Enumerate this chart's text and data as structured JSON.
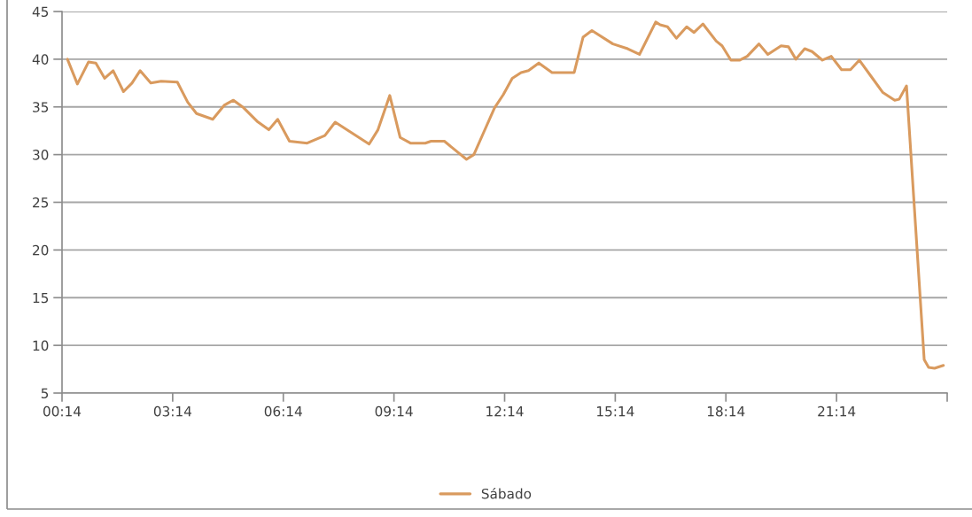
{
  "chart_data": {
    "type": "line",
    "series": [
      {
        "name": "Sábado",
        "color": "#d99a5e",
        "x": [
          0.38,
          0.65,
          0.95,
          1.15,
          1.39,
          1.62,
          1.9,
          2.13,
          2.35,
          2.64,
          2.92,
          3.36,
          3.64,
          3.88,
          4.32,
          4.64,
          4.88,
          5.16,
          5.52,
          5.84,
          6.08,
          6.4,
          6.88,
          7.36,
          7.64,
          8.56,
          8.8,
          9.12,
          9.4,
          9.68,
          10.08,
          10.24,
          10.6,
          11.2,
          11.4,
          11.64,
          11.96,
          12.2,
          12.44,
          12.68,
          12.88,
          13.16,
          13.52,
          14.12,
          14.36,
          14.6,
          15.17,
          15.57,
          15.89,
          16.33,
          16.45,
          16.65,
          16.89,
          17.17,
          17.37,
          17.61,
          17.97,
          18.13,
          18.37,
          18.61,
          18.81,
          19.13,
          19.37,
          19.73,
          19.93,
          20.13,
          20.37,
          20.57,
          20.85,
          21.09,
          21.37,
          21.61,
          21.85,
          22.17,
          22.49,
          22.81,
          22.93,
          23.13,
          23.61,
          23.73,
          23.89,
          24.13
        ],
        "values": [
          40.0,
          37.4,
          39.7,
          39.6,
          38.0,
          38.8,
          36.6,
          37.5,
          38.8,
          37.5,
          37.7,
          37.6,
          35.5,
          34.3,
          33.7,
          35.2,
          35.7,
          34.9,
          33.5,
          32.6,
          33.7,
          31.4,
          31.2,
          32.0,
          33.4,
          31.1,
          32.6,
          36.2,
          31.8,
          31.2,
          31.2,
          31.4,
          31.4,
          29.5,
          30.0,
          32.1,
          34.9,
          36.3,
          38.0,
          38.6,
          38.8,
          39.6,
          38.6,
          38.6,
          42.3,
          43.0,
          41.6,
          41.1,
          40.5,
          43.9,
          43.6,
          43.4,
          42.2,
          43.4,
          42.8,
          43.7,
          41.9,
          41.4,
          39.9,
          39.9,
          40.3,
          41.6,
          40.5,
          41.4,
          41.3,
          40.0,
          41.1,
          40.8,
          39.9,
          40.3,
          38.9,
          38.9,
          39.9,
          38.2,
          36.5,
          35.7,
          35.8,
          37.2,
          8.5,
          7.7,
          7.6,
          7.9
        ]
      }
    ],
    "xlim": [
      0.2333,
      24.2333
    ],
    "xticks": [
      {
        "value": 0.2333,
        "label": "00:14"
      },
      {
        "value": 3.2333,
        "label": "03:14"
      },
      {
        "value": 6.2333,
        "label": "06:14"
      },
      {
        "value": 9.2333,
        "label": "09:14"
      },
      {
        "value": 12.2333,
        "label": "12:14"
      },
      {
        "value": 15.2333,
        "label": "15:14"
      },
      {
        "value": 18.2333,
        "label": "18:14"
      },
      {
        "value": 21.2333,
        "label": "21:14"
      },
      {
        "value": 24.2333,
        "label": null
      }
    ],
    "ylim": [
      5,
      45
    ],
    "yticks": [
      5,
      10,
      15,
      20,
      25,
      30,
      35,
      40,
      45
    ],
    "grid": "y",
    "legend": "bottom"
  }
}
